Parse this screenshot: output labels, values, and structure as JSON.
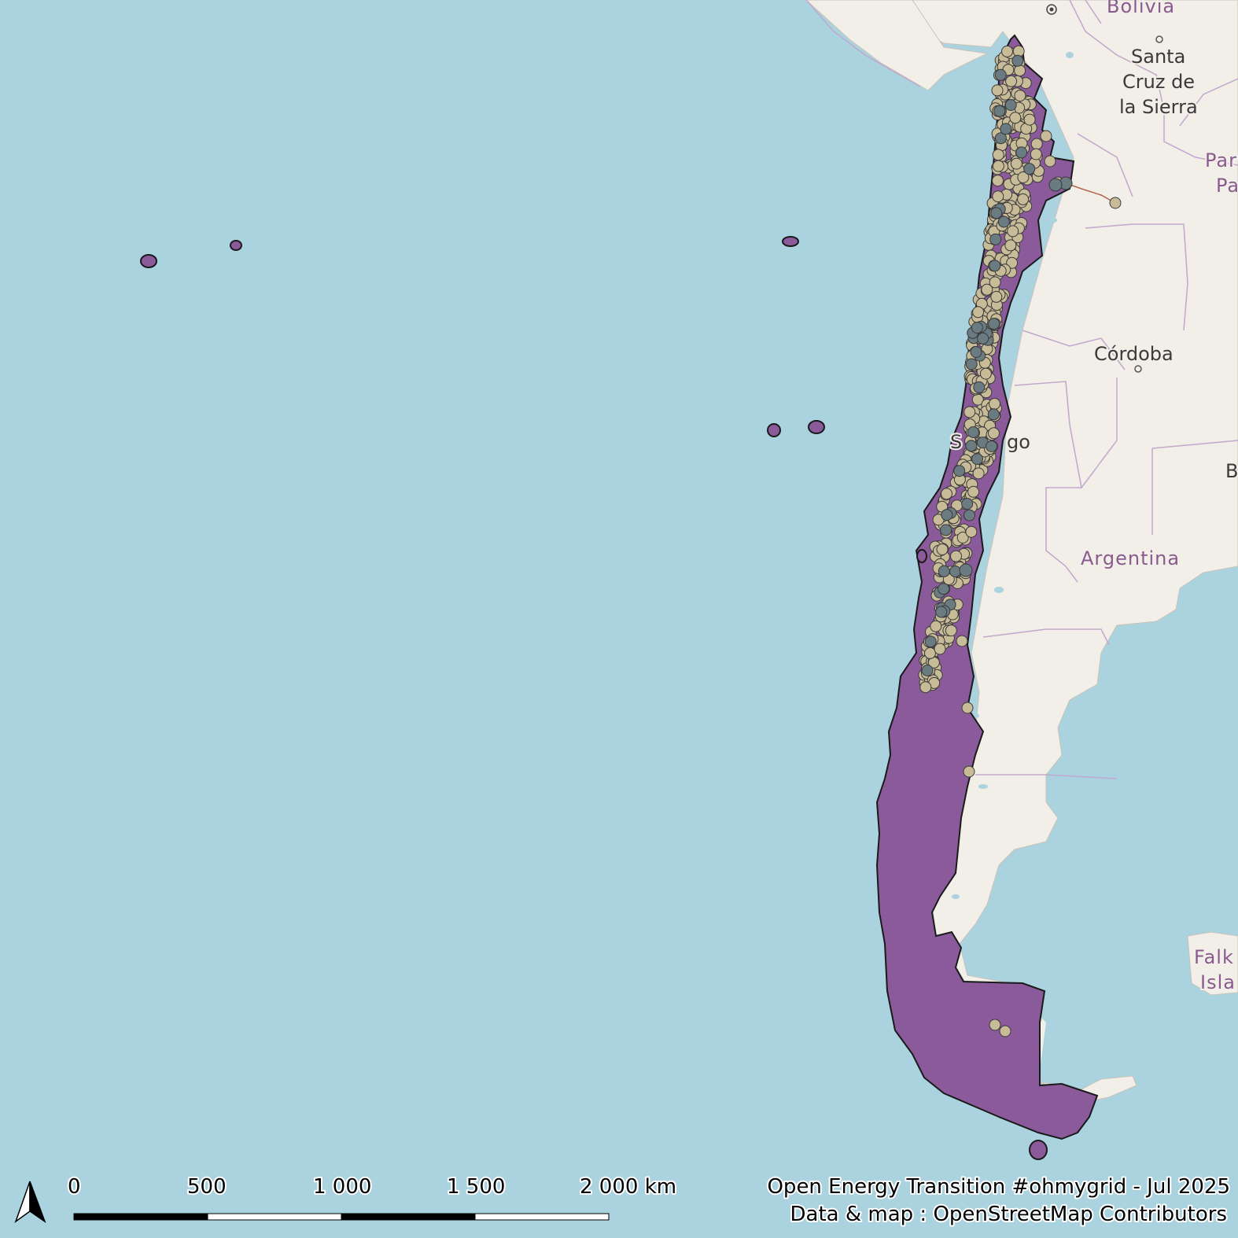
{
  "map": {
    "places": {
      "bolivia": "Bolivia",
      "santa_cruz_1": "Santa",
      "santa_cruz_2": "Cruz de",
      "santa_cruz_3": "la Sierra",
      "paraguay_1": "Par",
      "paraguay_2": "Pa",
      "cordoba": "Córdoba",
      "santiago_1": "S",
      "santiago_2": "go",
      "argentina": "Argentina",
      "b_edge": "B",
      "falkland_1": "Falk",
      "falkland_2": "Isla"
    },
    "colors": {
      "ocean": "#aad3df",
      "land": "#f2efe9",
      "region_fill": "#8b5a9a",
      "plant_marker": "#c8bb98",
      "substation_marker": "#6b7b82",
      "border": "#b59fc0"
    }
  },
  "scale_bar": {
    "ticks": [
      "0",
      "500",
      "1 000",
      "1 500",
      "2 000 km"
    ]
  },
  "credits": {
    "line1": "Open Energy Transition #ohmygrid - Jul 2025",
    "line2": "Data & map : OpenStreetMap Contributors"
  },
  "icons": {
    "north_arrow": "north-arrow-icon"
  }
}
